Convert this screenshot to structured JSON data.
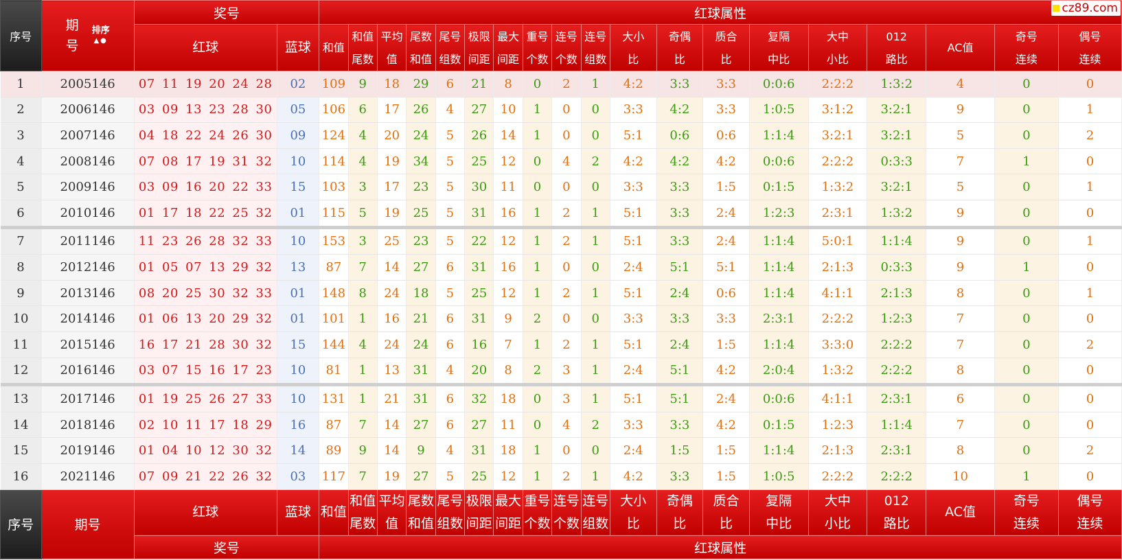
{
  "logo": "cz89.com",
  "header": {
    "seq": "序号",
    "issue_top": "期",
    "issue_bottom": "号",
    "issue_full": "期号",
    "sort_label": "排序",
    "sort_arrows": "▲●",
    "prize": "奖号",
    "red_attrs": "红球属性",
    "red": "红球",
    "blue": "蓝球",
    "columns": [
      {
        "l1": "和值",
        "l2": ""
      },
      {
        "l1": "和值",
        "l2": "尾数"
      },
      {
        "l1": "平均",
        "l2": "值"
      },
      {
        "l1": "尾数",
        "l2": "和值"
      },
      {
        "l1": "尾号",
        "l2": "组数"
      },
      {
        "l1": "极限",
        "l2": "间距"
      },
      {
        "l1": "最大",
        "l2": "间距"
      },
      {
        "l1": "重号",
        "l2": "个数"
      },
      {
        "l1": "连号",
        "l2": "个数"
      },
      {
        "l1": "连号",
        "l2": "组数"
      },
      {
        "l1": "大小",
        "l2": "比"
      },
      {
        "l1": "奇偶",
        "l2": "比"
      },
      {
        "l1": "质合",
        "l2": "比"
      },
      {
        "l1": "复隔",
        "l2": "中比"
      },
      {
        "l1": "大中",
        "l2": "小比"
      },
      {
        "l1": "012",
        "l2": "路比"
      },
      {
        "l1": "AC值",
        "l2": ""
      },
      {
        "l1": "奇号",
        "l2": "连续"
      },
      {
        "l1": "偶号",
        "l2": "连续"
      }
    ]
  },
  "rows": [
    {
      "seq": "1",
      "issue": "2005146",
      "reds": "07 11 19 20 24 28",
      "blue": "02",
      "vals": [
        "109",
        "9",
        "18",
        "29",
        "6",
        "21",
        "8",
        "0",
        "2",
        "1",
        "4:2",
        "3:3",
        "3:3",
        "0:0:6",
        "2:2:2",
        "1:3:2",
        "4",
        "0",
        "0"
      ]
    },
    {
      "seq": "2",
      "issue": "2006146",
      "reds": "03 09 13 23 28 30",
      "blue": "05",
      "vals": [
        "106",
        "6",
        "17",
        "26",
        "4",
        "27",
        "10",
        "1",
        "0",
        "0",
        "3:3",
        "4:2",
        "3:3",
        "1:0:5",
        "3:1:2",
        "3:2:1",
        "9",
        "0",
        "1"
      ]
    },
    {
      "seq": "3",
      "issue": "2007146",
      "reds": "04 18 22 24 26 30",
      "blue": "09",
      "vals": [
        "124",
        "4",
        "20",
        "24",
        "5",
        "26",
        "14",
        "1",
        "0",
        "0",
        "5:1",
        "0:6",
        "0:6",
        "1:1:4",
        "3:2:1",
        "3:2:1",
        "5",
        "0",
        "2"
      ]
    },
    {
      "seq": "4",
      "issue": "2008146",
      "reds": "07 08 17 19 31 32",
      "blue": "10",
      "vals": [
        "114",
        "4",
        "19",
        "34",
        "5",
        "25",
        "12",
        "0",
        "4",
        "2",
        "4:2",
        "4:2",
        "4:2",
        "0:0:6",
        "2:2:2",
        "0:3:3",
        "7",
        "1",
        "0"
      ]
    },
    {
      "seq": "5",
      "issue": "2009146",
      "reds": "03 09 16 20 22 33",
      "blue": "15",
      "vals": [
        "103",
        "3",
        "17",
        "23",
        "5",
        "30",
        "11",
        "0",
        "0",
        "0",
        "3:3",
        "3:3",
        "1:5",
        "0:1:5",
        "1:3:2",
        "3:2:1",
        "5",
        "0",
        "1"
      ]
    },
    {
      "seq": "6",
      "issue": "2010146",
      "reds": "01 17 18 22 25 32",
      "blue": "01",
      "vals": [
        "115",
        "5",
        "19",
        "25",
        "5",
        "31",
        "16",
        "1",
        "2",
        "1",
        "5:1",
        "3:3",
        "2:4",
        "1:2:3",
        "2:3:1",
        "1:3:2",
        "9",
        "0",
        "0"
      ]
    },
    {
      "seq": "7",
      "issue": "2011146",
      "reds": "11 23 26 28 32 33",
      "blue": "10",
      "vals": [
        "153",
        "3",
        "25",
        "23",
        "5",
        "22",
        "12",
        "1",
        "2",
        "1",
        "5:1",
        "3:3",
        "2:4",
        "1:1:4",
        "5:0:1",
        "1:1:4",
        "9",
        "0",
        "1"
      ]
    },
    {
      "seq": "8",
      "issue": "2012146",
      "reds": "01 05 07 13 29 32",
      "blue": "13",
      "vals": [
        "87",
        "7",
        "14",
        "27",
        "6",
        "31",
        "16",
        "1",
        "0",
        "0",
        "2:4",
        "5:1",
        "5:1",
        "1:1:4",
        "2:1:3",
        "0:3:3",
        "9",
        "1",
        "0"
      ]
    },
    {
      "seq": "9",
      "issue": "2013146",
      "reds": "08 20 25 30 32 33",
      "blue": "01",
      "vals": [
        "148",
        "8",
        "24",
        "18",
        "5",
        "25",
        "12",
        "1",
        "2",
        "1",
        "5:1",
        "2:4",
        "0:6",
        "1:1:4",
        "4:1:1",
        "2:1:3",
        "8",
        "0",
        "1"
      ]
    },
    {
      "seq": "10",
      "issue": "2014146",
      "reds": "01 06 13 20 29 32",
      "blue": "01",
      "vals": [
        "101",
        "1",
        "16",
        "21",
        "6",
        "31",
        "9",
        "2",
        "0",
        "0",
        "3:3",
        "3:3",
        "3:3",
        "2:3:1",
        "2:2:2",
        "1:2:3",
        "7",
        "0",
        "0"
      ]
    },
    {
      "seq": "11",
      "issue": "2015146",
      "reds": "16 17 21 28 30 32",
      "blue": "15",
      "vals": [
        "144",
        "4",
        "24",
        "24",
        "6",
        "16",
        "7",
        "1",
        "2",
        "1",
        "5:1",
        "2:4",
        "1:5",
        "1:1:4",
        "3:3:0",
        "2:2:2",
        "7",
        "0",
        "2"
      ]
    },
    {
      "seq": "12",
      "issue": "2016146",
      "reds": "03 07 15 16 17 23",
      "blue": "10",
      "vals": [
        "81",
        "1",
        "13",
        "31",
        "4",
        "20",
        "8",
        "2",
        "3",
        "1",
        "2:4",
        "5:1",
        "4:2",
        "2:0:4",
        "1:3:2",
        "2:2:2",
        "8",
        "0",
        "0"
      ]
    },
    {
      "seq": "13",
      "issue": "2017146",
      "reds": "01 19 25 26 27 33",
      "blue": "10",
      "vals": [
        "131",
        "1",
        "21",
        "31",
        "6",
        "32",
        "18",
        "0",
        "3",
        "1",
        "5:1",
        "5:1",
        "2:4",
        "0:0:6",
        "4:1:1",
        "2:3:1",
        "6",
        "0",
        "0"
      ]
    },
    {
      "seq": "14",
      "issue": "2018146",
      "reds": "02 10 11 17 18 29",
      "blue": "16",
      "vals": [
        "87",
        "7",
        "14",
        "27",
        "6",
        "27",
        "11",
        "0",
        "4",
        "2",
        "3:3",
        "3:3",
        "4:2",
        "0:1:5",
        "1:2:3",
        "1:1:4",
        "7",
        "0",
        "0"
      ]
    },
    {
      "seq": "15",
      "issue": "2019146",
      "reds": "01 04 10 12 30 32",
      "blue": "14",
      "vals": [
        "89",
        "9",
        "14",
        "9",
        "4",
        "31",
        "18",
        "1",
        "0",
        "0",
        "2:4",
        "1:5",
        "1:5",
        "1:1:4",
        "2:1:3",
        "2:3:1",
        "8",
        "0",
        "2"
      ]
    },
    {
      "seq": "16",
      "issue": "2021146",
      "reds": "07 09 21 22 26 32",
      "blue": "03",
      "vals": [
        "117",
        "7",
        "19",
        "27",
        "5",
        "25",
        "12",
        "1",
        "2",
        "1",
        "4:2",
        "3:3",
        "1:5",
        "1:0:5",
        "2:2:2",
        "2:2:2",
        "10",
        "1",
        "0"
      ]
    }
  ]
}
